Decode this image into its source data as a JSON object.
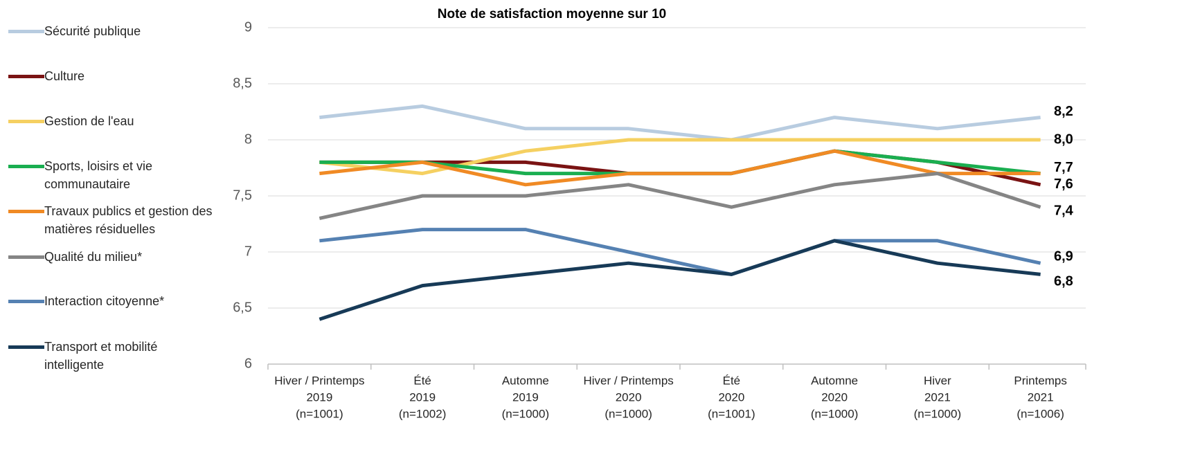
{
  "chart_data": {
    "type": "line",
    "title": "Note de satisfaction moyenne sur 10",
    "categories": [
      [
        "Hiver / Printemps",
        "2019",
        "(n=1001)"
      ],
      [
        "Été",
        "2019",
        "(n=1002)"
      ],
      [
        "Automne",
        "2019",
        "(n=1000)"
      ],
      [
        "Hiver / Printemps",
        "2020",
        "(n=1000)"
      ],
      [
        "Été",
        "2020",
        "(n=1001)"
      ],
      [
        "Automne",
        "2020",
        "(n=1000)"
      ],
      [
        "Hiver",
        "2021",
        "(n=1000)"
      ],
      [
        "Printemps",
        "2021",
        "(n=1006)"
      ]
    ],
    "ylim": [
      6,
      9
    ],
    "yticks": [
      6,
      {
        "value": 6.5,
        "label": "6,5"
      },
      7,
      {
        "value": 7.5,
        "label": "7,5"
      },
      8,
      {
        "value": 8.5,
        "label": "8,5"
      },
      9
    ],
    "grid": true,
    "legend": "left",
    "series": [
      {
        "name": "Sécurité publique",
        "color": "#b8cce0",
        "values": [
          8.2,
          8.3,
          8.1,
          8.1,
          8.0,
          8.2,
          8.1,
          8.2
        ],
        "value_labels": [
          null,
          null,
          null,
          null,
          null,
          null,
          null,
          "8,2"
        ]
      },
      {
        "name": "Culture",
        "color": "#7a1313",
        "values": [
          7.8,
          7.8,
          7.8,
          7.7,
          7.7,
          7.9,
          7.8,
          7.6
        ],
        "value_labels": [
          null,
          null,
          null,
          null,
          null,
          null,
          null,
          "7,6"
        ]
      },
      {
        "name": "Gestion de l'eau",
        "color": "#f5d061",
        "values": [
          7.8,
          7.7,
          7.9,
          8.0,
          8.0,
          8.0,
          8.0,
          8.0
        ],
        "value_labels": [
          null,
          null,
          null,
          null,
          null,
          null,
          null,
          "8,0"
        ]
      },
      {
        "name": "Sports, loisirs et vie communautaire",
        "color": "#1aae50",
        "values": [
          7.8,
          7.8,
          7.7,
          7.7,
          7.7,
          7.9,
          7.8,
          7.7
        ],
        "value_labels": [
          null,
          null,
          null,
          null,
          null,
          null,
          null,
          "7,7"
        ]
      },
      {
        "name": "Travaux publics et gestion des matières résiduelles",
        "color": "#f08a24",
        "values": [
          7.7,
          7.8,
          7.6,
          7.7,
          7.7,
          7.9,
          7.7,
          7.7
        ]
      },
      {
        "name": "Qualité du milieu*",
        "color": "#858585",
        "values": [
          7.3,
          7.5,
          7.5,
          7.6,
          7.4,
          7.6,
          7.7,
          7.4
        ],
        "value_labels": [
          null,
          null,
          null,
          null,
          null,
          null,
          null,
          "7,4"
        ]
      },
      {
        "name": "Interaction citoyenne*",
        "color": "#5581b2",
        "values": [
          7.1,
          7.2,
          7.2,
          7.0,
          6.8,
          7.1,
          7.1,
          6.9
        ],
        "value_labels": [
          null,
          null,
          null,
          null,
          null,
          null,
          null,
          "6,9"
        ]
      },
      {
        "name": "Transport et mobilité intelligente",
        "color": "#173a57",
        "values": [
          6.4,
          6.7,
          6.8,
          6.9,
          6.8,
          7.1,
          6.9,
          6.8
        ],
        "value_labels": [
          null,
          null,
          null,
          null,
          null,
          null,
          null,
          "6,8"
        ]
      }
    ]
  }
}
